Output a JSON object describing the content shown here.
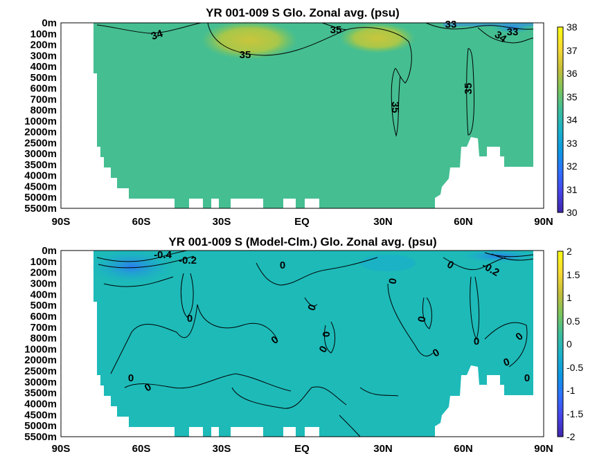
{
  "chart_data": [
    {
      "type": "heatmap",
      "title": "YR 001-009 S Glo. Zonal avg. (psu)",
      "x_ticks": [
        "90S",
        "60S",
        "30S",
        "EQ",
        "30N",
        "60N",
        "90N"
      ],
      "x_values": [
        -90,
        -60,
        -30,
        0,
        30,
        60,
        90
      ],
      "y_ticks": [
        "0m",
        "100m",
        "200m",
        "300m",
        "400m",
        "500m",
        "600m",
        "700m",
        "800m",
        "1000m",
        "2000m",
        "2500m",
        "3000m",
        "3500m",
        "4000m",
        "4500m",
        "5000m",
        "5500m"
      ],
      "colorbar": {
        "min": 30,
        "max": 38,
        "ticks": [
          "30",
          "31",
          "32",
          "33",
          "34",
          "35",
          "36",
          "37",
          "38"
        ]
      },
      "contour_labels": [
        "34",
        "35",
        "35",
        "33",
        "33",
        "34",
        "35",
        "35"
      ],
      "colormap": [
        "#3e26a8",
        "#4743e8",
        "#2f6ffd",
        "#0d97e2",
        "#1ab0c9",
        "#3bbd9c",
        "#7ac45e",
        "#c3bd3a",
        "#f7d933",
        "#f9fb15"
      ]
    },
    {
      "type": "heatmap",
      "title": "YR 001-009 S (Model-Clm.) Glo. Zonal avg. (psu)",
      "x_ticks": [
        "90S",
        "60S",
        "30S",
        "EQ",
        "30N",
        "60N",
        "90N"
      ],
      "x_values": [
        -90,
        -60,
        -30,
        0,
        30,
        60,
        90
      ],
      "y_ticks": [
        "0m",
        "100m",
        "200m",
        "300m",
        "400m",
        "500m",
        "600m",
        "700m",
        "800m",
        "1000m",
        "2000m",
        "2500m",
        "3000m",
        "3500m",
        "4000m",
        "4500m",
        "5000m",
        "5500m"
      ],
      "colorbar": {
        "min": -2,
        "max": 2,
        "ticks": [
          "-2",
          "-1.5",
          "-1",
          "-0.5",
          "0",
          "0.5",
          "1",
          "1.5",
          "2"
        ]
      },
      "contour_labels": [
        "-0.4",
        "-0.2",
        "0",
        "0",
        "-0.2",
        "0",
        "0",
        "0",
        "0",
        "0",
        "0",
        "0",
        "0",
        "0",
        "0",
        "0",
        "0",
        "0",
        "0"
      ],
      "colormap": [
        "#3e26a8",
        "#4743e8",
        "#2f6ffd",
        "#0d97e2",
        "#1ab0c9",
        "#3bbd9c",
        "#7ac45e",
        "#c3bd3a",
        "#f7d933",
        "#f9fb15"
      ]
    }
  ]
}
